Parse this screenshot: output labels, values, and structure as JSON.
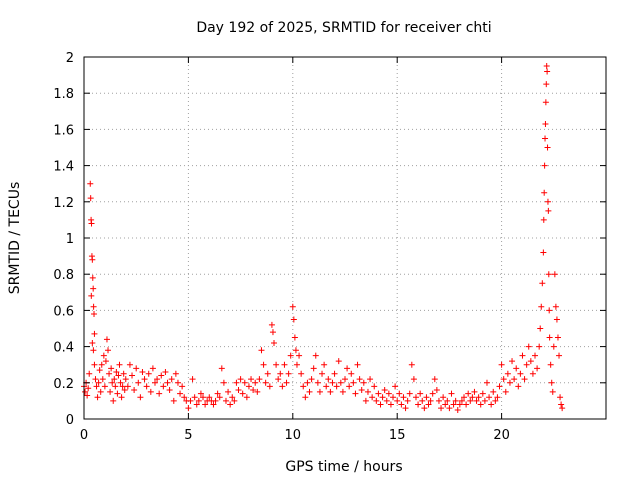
{
  "chart_data": {
    "type": "scatter",
    "title": "Day 192 of 2025, SRMTID for receiver chti",
    "xlabel": "GPS time / hours",
    "ylabel": "SRMTID / TECUs",
    "xlim": [
      0,
      25
    ],
    "ylim": [
      0,
      2
    ],
    "xticks": [
      "0",
      "5",
      "10",
      "15",
      "20"
    ],
    "xtick_values": [
      0,
      5,
      10,
      15,
      20
    ],
    "yticks": [
      "0",
      "0.2",
      "0.4",
      "0.6",
      "0.8",
      "1",
      "1.2",
      "1.4",
      "1.6",
      "1.8",
      "2"
    ],
    "ytick_values": [
      0,
      0.2,
      0.4,
      0.6,
      0.8,
      1.0,
      1.2,
      1.4,
      1.6,
      1.8,
      2.0
    ],
    "grid": true,
    "marker": "+",
    "series": [
      {
        "name": "SRMTID",
        "color": "#ff0000",
        "points": [
          [
            0.0,
            0.18
          ],
          [
            0.05,
            0.15
          ],
          [
            0.1,
            0.2
          ],
          [
            0.15,
            0.13
          ],
          [
            0.2,
            0.17
          ],
          [
            0.25,
            0.25
          ],
          [
            0.3,
            1.3
          ],
          [
            0.32,
            1.22
          ],
          [
            0.34,
            1.1
          ],
          [
            0.36,
            1.08
          ],
          [
            0.38,
            0.9
          ],
          [
            0.4,
            0.88
          ],
          [
            0.42,
            0.78
          ],
          [
            0.44,
            0.72
          ],
          [
            0.46,
            0.62
          ],
          [
            0.48,
            0.58
          ],
          [
            0.5,
            0.47
          ],
          [
            0.35,
            0.68
          ],
          [
            0.4,
            0.42
          ],
          [
            0.45,
            0.38
          ],
          [
            0.5,
            0.3
          ],
          [
            0.55,
            0.22
          ],
          [
            0.6,
            0.18
          ],
          [
            0.65,
            0.12
          ],
          [
            0.7,
            0.2
          ],
          [
            0.75,
            0.27
          ],
          [
            0.8,
            0.15
          ],
          [
            0.85,
            0.3
          ],
          [
            0.9,
            0.22
          ],
          [
            0.95,
            0.35
          ],
          [
            1.0,
            0.18
          ],
          [
            1.05,
            0.32
          ],
          [
            1.1,
            0.44
          ],
          [
            1.15,
            0.38
          ],
          [
            1.2,
            0.25
          ],
          [
            1.25,
            0.15
          ],
          [
            1.3,
            0.28
          ],
          [
            1.35,
            0.2
          ],
          [
            1.4,
            0.1
          ],
          [
            1.45,
            0.22
          ],
          [
            1.5,
            0.18
          ],
          [
            1.55,
            0.26
          ],
          [
            1.6,
            0.14
          ],
          [
            1.65,
            0.24
          ],
          [
            1.7,
            0.3
          ],
          [
            1.75,
            0.2
          ],
          [
            1.8,
            0.12
          ],
          [
            1.85,
            0.18
          ],
          [
            1.9,
            0.25
          ],
          [
            1.95,
            0.16
          ],
          [
            2.0,
            0.22
          ],
          [
            2.1,
            0.18
          ],
          [
            2.2,
            0.3
          ],
          [
            2.3,
            0.24
          ],
          [
            2.4,
            0.16
          ],
          [
            2.5,
            0.28
          ],
          [
            2.6,
            0.2
          ],
          [
            2.7,
            0.12
          ],
          [
            2.8,
            0.26
          ],
          [
            2.9,
            0.22
          ],
          [
            3.0,
            0.18
          ],
          [
            3.1,
            0.25
          ],
          [
            3.2,
            0.15
          ],
          [
            3.3,
            0.28
          ],
          [
            3.4,
            0.2
          ],
          [
            3.5,
            0.22
          ],
          [
            3.6,
            0.14
          ],
          [
            3.7,
            0.24
          ],
          [
            3.8,
            0.18
          ],
          [
            3.9,
            0.26
          ],
          [
            4.0,
            0.2
          ],
          [
            4.1,
            0.16
          ],
          [
            4.2,
            0.22
          ],
          [
            4.3,
            0.1
          ],
          [
            4.4,
            0.25
          ],
          [
            4.5,
            0.2
          ],
          [
            4.6,
            0.14
          ],
          [
            4.7,
            0.18
          ],
          [
            4.8,
            0.12
          ],
          [
            4.9,
            0.1
          ],
          [
            5.0,
            0.06
          ],
          [
            5.1,
            0.1
          ],
          [
            5.2,
            0.22
          ],
          [
            5.3,
            0.12
          ],
          [
            5.4,
            0.08
          ],
          [
            5.5,
            0.1
          ],
          [
            5.6,
            0.14
          ],
          [
            5.7,
            0.12
          ],
          [
            5.8,
            0.08
          ],
          [
            5.9,
            0.1
          ],
          [
            6.0,
            0.12
          ],
          [
            6.1,
            0.1
          ],
          [
            6.2,
            0.08
          ],
          [
            6.3,
            0.1
          ],
          [
            6.4,
            0.14
          ],
          [
            6.5,
            0.12
          ],
          [
            6.6,
            0.28
          ],
          [
            6.7,
            0.2
          ],
          [
            6.8,
            0.1
          ],
          [
            6.9,
            0.15
          ],
          [
            7.0,
            0.08
          ],
          [
            7.1,
            0.12
          ],
          [
            7.2,
            0.1
          ],
          [
            7.3,
            0.2
          ],
          [
            7.4,
            0.16
          ],
          [
            7.5,
            0.22
          ],
          [
            7.6,
            0.14
          ],
          [
            7.7,
            0.2
          ],
          [
            7.8,
            0.12
          ],
          [
            7.9,
            0.18
          ],
          [
            8.0,
            0.22
          ],
          [
            8.1,
            0.16
          ],
          [
            8.2,
            0.2
          ],
          [
            8.3,
            0.15
          ],
          [
            8.4,
            0.22
          ],
          [
            8.5,
            0.38
          ],
          [
            8.6,
            0.3
          ],
          [
            8.7,
            0.2
          ],
          [
            8.8,
            0.25
          ],
          [
            8.9,
            0.18
          ],
          [
            9.0,
            0.52
          ],
          [
            9.05,
            0.48
          ],
          [
            9.1,
            0.42
          ],
          [
            9.2,
            0.3
          ],
          [
            9.3,
            0.22
          ],
          [
            9.4,
            0.25
          ],
          [
            9.5,
            0.18
          ],
          [
            9.6,
            0.3
          ],
          [
            9.7,
            0.2
          ],
          [
            9.8,
            0.25
          ],
          [
            9.9,
            0.35
          ],
          [
            10.0,
            0.62
          ],
          [
            10.05,
            0.55
          ],
          [
            10.1,
            0.45
          ],
          [
            10.15,
            0.38
          ],
          [
            10.2,
            0.3
          ],
          [
            10.3,
            0.35
          ],
          [
            10.4,
            0.25
          ],
          [
            10.5,
            0.18
          ],
          [
            10.6,
            0.12
          ],
          [
            10.7,
            0.2
          ],
          [
            10.8,
            0.15
          ],
          [
            10.9,
            0.22
          ],
          [
            11.0,
            0.28
          ],
          [
            11.1,
            0.35
          ],
          [
            11.2,
            0.2
          ],
          [
            11.3,
            0.15
          ],
          [
            11.4,
            0.25
          ],
          [
            11.5,
            0.3
          ],
          [
            11.6,
            0.18
          ],
          [
            11.7,
            0.22
          ],
          [
            11.8,
            0.15
          ],
          [
            11.9,
            0.2
          ],
          [
            12.0,
            0.25
          ],
          [
            12.1,
            0.18
          ],
          [
            12.2,
            0.32
          ],
          [
            12.3,
            0.2
          ],
          [
            12.4,
            0.15
          ],
          [
            12.5,
            0.22
          ],
          [
            12.6,
            0.28
          ],
          [
            12.7,
            0.18
          ],
          [
            12.8,
            0.25
          ],
          [
            12.9,
            0.2
          ],
          [
            13.0,
            0.14
          ],
          [
            13.1,
            0.3
          ],
          [
            13.2,
            0.22
          ],
          [
            13.3,
            0.16
          ],
          [
            13.4,
            0.2
          ],
          [
            13.5,
            0.1
          ],
          [
            13.6,
            0.15
          ],
          [
            13.7,
            0.22
          ],
          [
            13.8,
            0.12
          ],
          [
            13.9,
            0.18
          ],
          [
            14.0,
            0.1
          ],
          [
            14.1,
            0.14
          ],
          [
            14.2,
            0.08
          ],
          [
            14.3,
            0.12
          ],
          [
            14.4,
            0.16
          ],
          [
            14.5,
            0.1
          ],
          [
            14.6,
            0.14
          ],
          [
            14.7,
            0.08
          ],
          [
            14.8,
            0.12
          ],
          [
            14.9,
            0.18
          ],
          [
            15.0,
            0.1
          ],
          [
            15.1,
            0.14
          ],
          [
            15.2,
            0.08
          ],
          [
            15.3,
            0.12
          ],
          [
            15.4,
            0.06
          ],
          [
            15.5,
            0.1
          ],
          [
            15.6,
            0.14
          ],
          [
            15.7,
            0.3
          ],
          [
            15.8,
            0.22
          ],
          [
            15.9,
            0.12
          ],
          [
            16.0,
            0.08
          ],
          [
            16.1,
            0.14
          ],
          [
            16.2,
            0.1
          ],
          [
            16.3,
            0.06
          ],
          [
            16.4,
            0.12
          ],
          [
            16.5,
            0.08
          ],
          [
            16.6,
            0.1
          ],
          [
            16.7,
            0.14
          ],
          [
            16.8,
            0.22
          ],
          [
            16.9,
            0.16
          ],
          [
            17.0,
            0.1
          ],
          [
            17.1,
            0.06
          ],
          [
            17.2,
            0.12
          ],
          [
            17.3,
            0.08
          ],
          [
            17.4,
            0.1
          ],
          [
            17.5,
            0.06
          ],
          [
            17.6,
            0.14
          ],
          [
            17.7,
            0.08
          ],
          [
            17.8,
            0.1
          ],
          [
            17.9,
            0.05
          ],
          [
            18.0,
            0.08
          ],
          [
            18.1,
            0.1
          ],
          [
            18.2,
            0.12
          ],
          [
            18.3,
            0.08
          ],
          [
            18.4,
            0.14
          ],
          [
            18.5,
            0.1
          ],
          [
            18.6,
            0.12
          ],
          [
            18.7,
            0.15
          ],
          [
            18.8,
            0.1
          ],
          [
            18.9,
            0.12
          ],
          [
            19.0,
            0.08
          ],
          [
            19.1,
            0.14
          ],
          [
            19.2,
            0.1
          ],
          [
            19.3,
            0.2
          ],
          [
            19.4,
            0.12
          ],
          [
            19.5,
            0.08
          ],
          [
            19.6,
            0.15
          ],
          [
            19.7,
            0.1
          ],
          [
            19.8,
            0.12
          ],
          [
            19.9,
            0.18
          ],
          [
            20.0,
            0.3
          ],
          [
            20.1,
            0.22
          ],
          [
            20.2,
            0.15
          ],
          [
            20.3,
            0.25
          ],
          [
            20.4,
            0.2
          ],
          [
            20.5,
            0.32
          ],
          [
            20.6,
            0.22
          ],
          [
            20.7,
            0.28
          ],
          [
            20.8,
            0.18
          ],
          [
            20.9,
            0.25
          ],
          [
            21.0,
            0.35
          ],
          [
            21.1,
            0.22
          ],
          [
            21.2,
            0.3
          ],
          [
            21.3,
            0.4
          ],
          [
            21.4,
            0.32
          ],
          [
            21.5,
            0.25
          ],
          [
            21.6,
            0.35
          ],
          [
            21.7,
            0.28
          ],
          [
            21.8,
            0.4
          ],
          [
            21.85,
            0.5
          ],
          [
            21.9,
            0.62
          ],
          [
            21.95,
            0.75
          ],
          [
            22.0,
            0.92
          ],
          [
            22.02,
            1.1
          ],
          [
            22.04,
            1.25
          ],
          [
            22.06,
            1.4
          ],
          [
            22.08,
            1.55
          ],
          [
            22.1,
            1.63
          ],
          [
            22.12,
            1.75
          ],
          [
            22.14,
            1.85
          ],
          [
            22.16,
            1.95
          ],
          [
            22.18,
            1.92
          ],
          [
            22.2,
            1.5
          ],
          [
            22.22,
            1.2
          ],
          [
            22.24,
            1.15
          ],
          [
            22.26,
            0.8
          ],
          [
            22.28,
            0.6
          ],
          [
            22.3,
            0.45
          ],
          [
            22.35,
            0.3
          ],
          [
            22.4,
            0.2
          ],
          [
            22.45,
            0.15
          ],
          [
            22.5,
            0.4
          ],
          [
            22.55,
            0.8
          ],
          [
            22.6,
            0.62
          ],
          [
            22.65,
            0.55
          ],
          [
            22.7,
            0.45
          ],
          [
            22.75,
            0.35
          ],
          [
            22.8,
            0.12
          ],
          [
            22.85,
            0.08
          ],
          [
            22.9,
            0.06
          ]
        ]
      }
    ]
  }
}
